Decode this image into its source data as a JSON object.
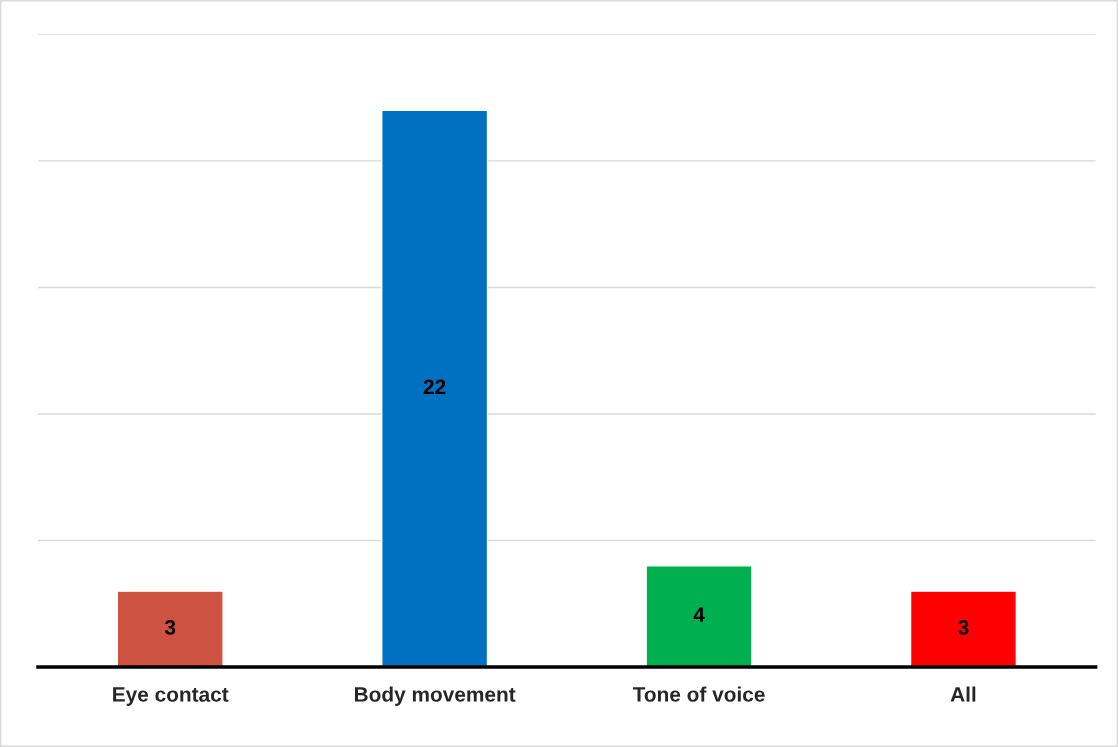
{
  "chart_data": {
    "type": "bar",
    "categories": [
      "Eye contact",
      "Body movement",
      "Tone of voice",
      "All"
    ],
    "values": [
      3,
      22,
      4,
      3
    ],
    "colors": [
      "#cd5340",
      "#0070c0",
      "#00b050",
      "#ff0000"
    ],
    "ylim": [
      0,
      25
    ],
    "yticks": [
      {
        "value": 5,
        "label": null
      },
      {
        "value": 10,
        "label": null
      },
      {
        "value": 15,
        "label": null
      },
      {
        "value": 20,
        "label": null
      },
      {
        "value": 25,
        "label": null
      }
    ],
    "tick_labels": "x",
    "grid": "y",
    "data_labels": true,
    "legend": false
  }
}
